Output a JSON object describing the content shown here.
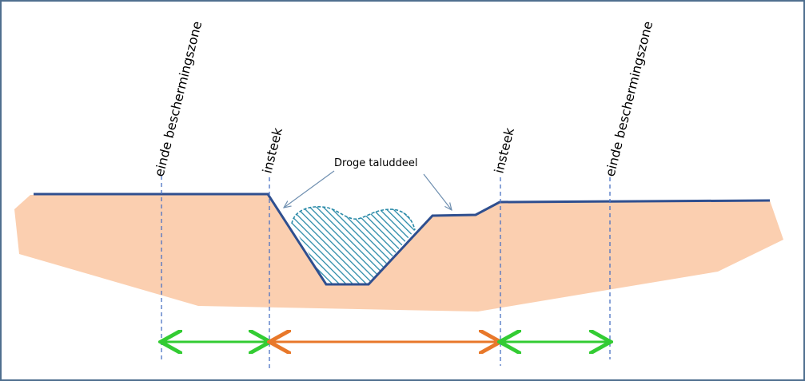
{
  "labels": {
    "left_zone_end": "einde beschermingszone",
    "left_insteek": "insteek",
    "dry_slope": "Droge taluddeel",
    "right_insteek": "insteek",
    "right_zone_end": "einde beschermingszone"
  },
  "colors": {
    "frame": "#4f6f8f",
    "soil": "#fbcfb0",
    "profile_line": "#2f4f8f",
    "dashed_line": "#4a72c4",
    "water_hatch": "#2a8aa8",
    "protection_arrow": "#33cc33",
    "waterway_arrow": "#e8782a",
    "pointer_line": "#6f8fb0"
  }
}
